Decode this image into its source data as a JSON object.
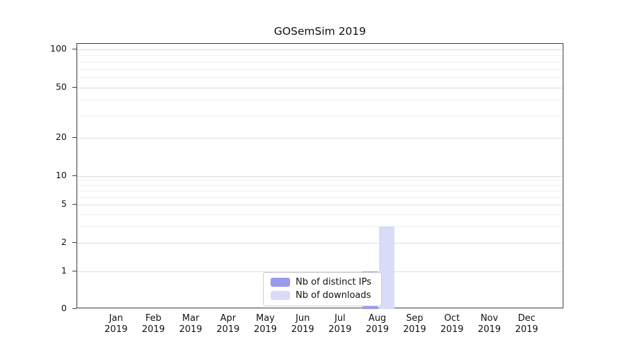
{
  "chart_data": {
    "type": "bar",
    "title": "GOSemSim 2019",
    "xlabel": "",
    "ylabel": "",
    "yscale": "log-like (0 baseline then log decades)",
    "ylim": [
      0,
      100
    ],
    "yticks": [
      0,
      1,
      2,
      5,
      10,
      20,
      50,
      100
    ],
    "minor_gridlines": [
      3,
      4,
      6,
      7,
      8,
      9,
      30,
      40,
      60,
      70,
      80,
      90
    ],
    "grid": "horizontal",
    "legend_position": "bottom-center-inside",
    "categories": [
      "Jan",
      "Feb",
      "Mar",
      "Apr",
      "May",
      "Jun",
      "Jul",
      "Aug",
      "Sep",
      "Oct",
      "Nov",
      "Dec"
    ],
    "category_year": "2019",
    "series": [
      {
        "name": "Nb of distinct IPs",
        "color": "#9b9bee",
        "values": [
          0,
          0,
          0,
          0,
          0,
          0,
          0,
          1,
          0,
          0,
          0,
          0
        ]
      },
      {
        "name": "Nb of downloads",
        "color": "#d9dcf8",
        "values": [
          0,
          0,
          0,
          0,
          0,
          0,
          0,
          3,
          0,
          0,
          0,
          0
        ]
      }
    ]
  }
}
